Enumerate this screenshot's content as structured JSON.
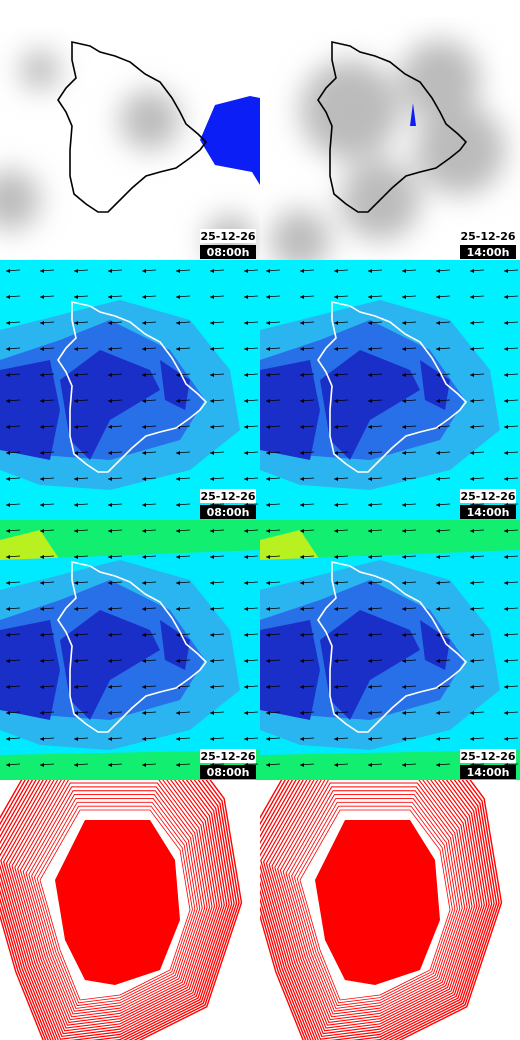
{
  "panels": [
    {
      "date": "25-12-26",
      "time": "08:00h"
    },
    {
      "date": "25-12-26",
      "time": "14:00h"
    },
    {
      "date": "25-12-26",
      "time": "08:00h"
    },
    {
      "date": "25-12-26",
      "time": "14:00h"
    },
    {
      "date": "25-12-26",
      "time": "08:00h"
    },
    {
      "date": "25-12-26",
      "time": "14:00h"
    }
  ]
}
